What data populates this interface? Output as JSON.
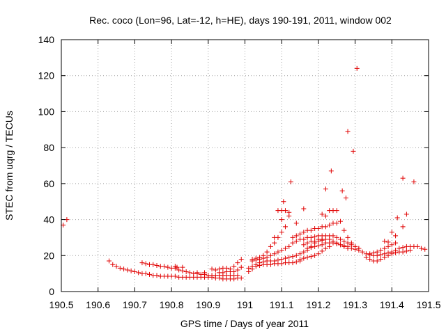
{
  "chart_data": {
    "type": "scatter",
    "title": "Rec. coco (Lon=96, Lat=-12, h=HE), days 190-191, 2011, window 002",
    "xlabel": "GPS time / Days of year 2011",
    "ylabel": "STEC from uqrg / TECUs",
    "xlim": [
      190.5,
      191.5
    ],
    "ylim": [
      0,
      140
    ],
    "xticks": [
      190.5,
      190.6,
      190.7,
      190.8,
      190.9,
      191,
      191.1,
      191.2,
      191.3,
      191.4,
      191.5
    ],
    "xtick_labels": [
      "190.5",
      "190.6",
      "190.7",
      "190.8",
      "190.9",
      "191",
      "191.1",
      "191.2",
      "191.3",
      "191.4",
      "191.5"
    ],
    "yticks": [
      0,
      20,
      40,
      60,
      80,
      100,
      120,
      140
    ],
    "ytick_labels": [
      "0",
      "20",
      "40",
      "60",
      "80",
      "100",
      "120",
      "140"
    ],
    "grid": true,
    "marker": "+",
    "color": "#e00000",
    "points": [
      [
        190.505,
        37
      ],
      [
        190.515,
        40
      ],
      [
        190.63,
        17
      ],
      [
        190.64,
        15
      ],
      [
        190.65,
        14
      ],
      [
        190.66,
        13
      ],
      [
        190.67,
        12.5
      ],
      [
        190.68,
        12
      ],
      [
        190.69,
        11.5
      ],
      [
        190.7,
        11
      ],
      [
        190.71,
        10.5
      ],
      [
        190.72,
        10
      ],
      [
        190.73,
        10
      ],
      [
        190.74,
        9.5
      ],
      [
        190.75,
        9
      ],
      [
        190.76,
        9
      ],
      [
        190.77,
        8.5
      ],
      [
        190.78,
        8.5
      ],
      [
        190.79,
        8.5
      ],
      [
        190.8,
        8.5
      ],
      [
        190.81,
        8.5
      ],
      [
        190.82,
        8
      ],
      [
        190.83,
        8
      ],
      [
        190.84,
        8
      ],
      [
        190.85,
        8
      ],
      [
        190.86,
        8
      ],
      [
        190.87,
        8
      ],
      [
        190.88,
        8
      ],
      [
        190.89,
        8
      ],
      [
        190.72,
        16
      ],
      [
        190.73,
        15.5
      ],
      [
        190.74,
        15
      ],
      [
        190.75,
        15
      ],
      [
        190.76,
        14.5
      ],
      [
        190.77,
        14
      ],
      [
        190.78,
        14
      ],
      [
        190.79,
        13.5
      ],
      [
        190.8,
        13
      ],
      [
        190.81,
        13
      ],
      [
        190.815,
        13.5
      ],
      [
        190.82,
        12
      ],
      [
        190.83,
        11.5
      ],
      [
        190.84,
        11
      ],
      [
        190.85,
        10.5
      ],
      [
        190.86,
        10
      ],
      [
        190.87,
        10
      ],
      [
        190.88,
        9.5
      ],
      [
        190.89,
        9.5
      ],
      [
        190.9,
        9
      ],
      [
        190.91,
        9
      ],
      [
        190.92,
        9
      ],
      [
        190.93,
        9
      ],
      [
        190.94,
        9
      ],
      [
        190.95,
        9
      ],
      [
        190.96,
        9
      ],
      [
        190.97,
        9
      ],
      [
        190.98,
        9
      ],
      [
        190.81,
        14
      ],
      [
        190.83,
        13.5
      ],
      [
        190.87,
        10.5
      ],
      [
        190.89,
        10.5
      ],
      [
        190.91,
        12.5
      ],
      [
        190.92,
        12
      ],
      [
        190.93,
        12.5
      ],
      [
        190.94,
        13
      ],
      [
        190.95,
        13
      ],
      [
        190.96,
        12.5
      ],
      [
        190.97,
        14
      ],
      [
        190.98,
        16
      ],
      [
        190.99,
        18
      ],
      [
        190.9,
        8
      ],
      [
        190.91,
        8
      ],
      [
        190.92,
        7.5
      ],
      [
        190.93,
        7.5
      ],
      [
        190.94,
        7
      ],
      [
        190.95,
        7
      ],
      [
        190.96,
        7
      ],
      [
        190.97,
        7
      ],
      [
        190.98,
        7.5
      ],
      [
        190.99,
        7.5
      ],
      [
        190.93,
        10.5
      ],
      [
        190.94,
        10.5
      ],
      [
        190.95,
        11
      ],
      [
        190.96,
        11
      ],
      [
        190.97,
        11
      ],
      [
        190.98,
        12
      ],
      [
        190.99,
        13.5
      ],
      [
        191.01,
        11
      ],
      [
        191.02,
        12.5
      ],
      [
        191.03,
        14
      ],
      [
        191.04,
        14.5
      ],
      [
        191.05,
        15
      ],
      [
        191.06,
        15
      ],
      [
        191.07,
        15
      ],
      [
        191.08,
        15.5
      ],
      [
        191.09,
        15.5
      ],
      [
        191.1,
        15.5
      ],
      [
        191.11,
        16
      ],
      [
        191.12,
        16
      ],
      [
        191.13,
        16
      ],
      [
        191.14,
        16.5
      ],
      [
        191.15,
        17
      ],
      [
        191.01,
        13
      ],
      [
        191.02,
        14
      ],
      [
        191.03,
        15
      ],
      [
        191.04,
        16
      ],
      [
        191.05,
        16.5
      ],
      [
        191.06,
        17
      ],
      [
        191.07,
        17
      ],
      [
        191.08,
        17
      ],
      [
        191.09,
        17.5
      ],
      [
        191.1,
        18
      ],
      [
        191.11,
        18.5
      ],
      [
        191.12,
        19
      ],
      [
        191.13,
        19.5
      ],
      [
        191.14,
        20
      ],
      [
        191.15,
        21
      ],
      [
        191.16,
        22
      ],
      [
        191.17,
        23
      ],
      [
        191.18,
        25
      ],
      [
        191.19,
        27
      ],
      [
        191.2,
        28
      ],
      [
        191.21,
        28.5
      ],
      [
        191.02,
        18
      ],
      [
        191.03,
        18.5
      ],
      [
        191.04,
        19
      ],
      [
        191.05,
        20
      ],
      [
        191.06,
        22
      ],
      [
        191.07,
        25
      ],
      [
        191.08,
        27
      ],
      [
        191.09,
        30
      ],
      [
        191.1,
        33
      ],
      [
        191.11,
        36
      ],
      [
        191.12,
        42
      ],
      [
        191.02,
        17
      ],
      [
        191.03,
        17.5
      ],
      [
        191.04,
        18
      ],
      [
        191.05,
        18.5
      ],
      [
        191.06,
        19
      ],
      [
        191.07,
        20
      ],
      [
        191.08,
        21
      ],
      [
        191.09,
        22
      ],
      [
        191.1,
        23
      ],
      [
        191.11,
        24
      ],
      [
        191.12,
        25
      ],
      [
        191.08,
        30
      ],
      [
        191.09,
        45
      ],
      [
        191.1,
        45
      ],
      [
        191.11,
        45
      ],
      [
        191.105,
        50
      ],
      [
        191.12,
        44
      ],
      [
        191.125,
        61
      ],
      [
        191.1,
        40
      ],
      [
        191.14,
        38
      ],
      [
        191.13,
        30
      ],
      [
        191.14,
        31
      ],
      [
        191.15,
        32
      ],
      [
        191.16,
        33
      ],
      [
        191.17,
        34
      ],
      [
        191.18,
        34
      ],
      [
        191.19,
        35
      ],
      [
        191.2,
        35
      ],
      [
        191.21,
        36
      ],
      [
        191.22,
        36
      ],
      [
        191.23,
        37
      ],
      [
        191.24,
        38
      ],
      [
        191.25,
        38
      ],
      [
        191.26,
        39
      ],
      [
        191.27,
        34
      ],
      [
        191.28,
        30
      ],
      [
        191.29,
        27
      ],
      [
        191.3,
        25
      ],
      [
        191.31,
        24
      ],
      [
        191.16,
        46
      ],
      [
        191.21,
        43
      ],
      [
        191.22,
        42
      ],
      [
        191.23,
        45
      ],
      [
        191.24,
        45
      ],
      [
        191.25,
        45
      ],
      [
        191.22,
        57
      ],
      [
        191.235,
        67
      ],
      [
        191.265,
        56
      ],
      [
        191.275,
        52
      ],
      [
        191.28,
        89
      ],
      [
        191.295,
        78
      ],
      [
        191.305,
        124
      ],
      [
        191.13,
        27
      ],
      [
        191.14,
        28
      ],
      [
        191.15,
        29
      ],
      [
        191.16,
        29
      ],
      [
        191.17,
        30
      ],
      [
        191.18,
        30
      ],
      [
        191.19,
        30.5
      ],
      [
        191.2,
        31
      ],
      [
        191.21,
        31
      ],
      [
        191.22,
        31
      ],
      [
        191.23,
        31
      ],
      [
        191.24,
        31
      ],
      [
        191.25,
        30
      ],
      [
        191.26,
        29
      ],
      [
        191.27,
        28
      ],
      [
        191.28,
        27
      ],
      [
        191.29,
        26
      ],
      [
        191.3,
        25
      ],
      [
        191.31,
        24
      ],
      [
        191.16,
        26
      ],
      [
        191.17,
        27
      ],
      [
        191.18,
        28
      ],
      [
        191.19,
        28
      ],
      [
        191.2,
        29
      ],
      [
        191.21,
        29
      ],
      [
        191.22,
        29
      ],
      [
        191.23,
        29
      ],
      [
        191.24,
        28
      ],
      [
        191.25,
        27
      ],
      [
        191.26,
        26
      ],
      [
        191.27,
        25.5
      ],
      [
        191.28,
        25
      ],
      [
        191.29,
        24
      ],
      [
        191.3,
        23.5
      ],
      [
        191.17,
        24
      ],
      [
        191.18,
        24.5
      ],
      [
        191.19,
        25
      ],
      [
        191.2,
        25.5
      ],
      [
        191.21,
        26
      ],
      [
        191.22,
        27
      ],
      [
        191.23,
        27
      ],
      [
        191.24,
        27
      ],
      [
        191.25,
        26.5
      ],
      [
        191.26,
        26
      ],
      [
        191.27,
        25
      ],
      [
        191.28,
        24
      ],
      [
        191.15,
        18
      ],
      [
        191.16,
        18.5
      ],
      [
        191.17,
        19
      ],
      [
        191.18,
        19.5
      ],
      [
        191.19,
        20
      ],
      [
        191.2,
        21
      ],
      [
        191.21,
        22.5
      ],
      [
        191.22,
        24
      ],
      [
        191.23,
        25
      ],
      [
        191.31,
        23
      ],
      [
        191.32,
        22
      ],
      [
        191.33,
        21
      ],
      [
        191.34,
        20.5
      ],
      [
        191.35,
        20
      ],
      [
        191.36,
        20
      ],
      [
        191.37,
        20.5
      ],
      [
        191.38,
        21
      ],
      [
        191.39,
        21.5
      ],
      [
        191.4,
        22
      ],
      [
        191.41,
        23
      ],
      [
        191.42,
        24
      ],
      [
        191.43,
        24.5
      ],
      [
        191.44,
        25
      ],
      [
        191.45,
        25
      ],
      [
        191.46,
        25
      ],
      [
        191.47,
        25
      ],
      [
        191.48,
        24
      ],
      [
        191.49,
        23.5
      ],
      [
        191.33,
        19
      ],
      [
        191.34,
        18
      ],
      [
        191.35,
        17
      ],
      [
        191.36,
        17
      ],
      [
        191.37,
        18
      ],
      [
        191.38,
        19
      ],
      [
        191.39,
        20
      ],
      [
        191.4,
        21
      ],
      [
        191.41,
        21.5
      ],
      [
        191.42,
        22
      ],
      [
        191.43,
        22
      ],
      [
        191.44,
        22.5
      ],
      [
        191.45,
        23
      ],
      [
        191.34,
        21
      ],
      [
        191.35,
        21.5
      ],
      [
        191.36,
        22
      ],
      [
        191.37,
        23
      ],
      [
        191.38,
        24
      ],
      [
        191.39,
        25
      ],
      [
        191.4,
        26
      ],
      [
        191.41,
        27
      ],
      [
        191.38,
        28
      ],
      [
        191.39,
        27.5
      ],
      [
        191.4,
        33
      ],
      [
        191.41,
        31
      ],
      [
        191.415,
        41
      ],
      [
        191.43,
        36
      ],
      [
        191.44,
        43
      ],
      [
        191.43,
        63
      ],
      [
        191.46,
        61
      ]
    ]
  }
}
